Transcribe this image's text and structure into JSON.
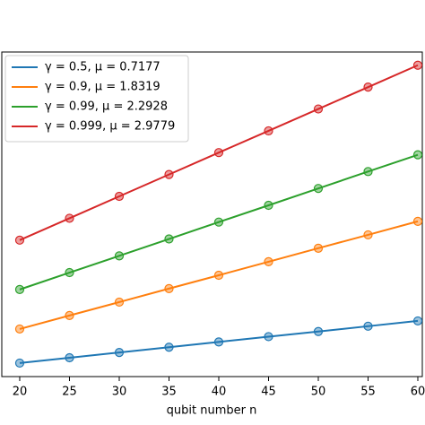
{
  "chart_data": {
    "type": "line",
    "x_label": "qubit number n",
    "x": [
      20,
      25,
      30,
      35,
      40,
      45,
      50,
      55,
      60
    ],
    "xlim": [
      18.2,
      60.45
    ],
    "xticks": [
      20,
      25,
      30,
      35,
      40,
      45,
      50,
      55,
      60
    ],
    "ylim": [
      0,
      221
    ],
    "legend": "upper left",
    "series": [
      {
        "name": "γ = 0.5,  μ = 0.7177",
        "color": "#1f77b4",
        "values": [
          9.2,
          12.8,
          16.4,
          20.0,
          23.6,
          27.2,
          30.7,
          34.3,
          37.9
        ]
      },
      {
        "name": "γ = 0.9,  μ = 1.8319",
        "color": "#ff7f0e",
        "values": [
          32.4,
          41.6,
          50.7,
          59.9,
          69.0,
          78.2,
          87.4,
          96.5,
          105.7
        ]
      },
      {
        "name": "γ = 0.99,  μ = 2.2928",
        "color": "#2ca02c",
        "values": [
          59.3,
          70.8,
          82.2,
          93.7,
          105.2,
          116.6,
          128.1,
          139.6,
          151.0
        ]
      },
      {
        "name": "γ = 0.999,  μ = 2.9779",
        "color": "#d62728",
        "values": [
          92.9,
          107.8,
          122.7,
          137.6,
          152.5,
          167.3,
          182.2,
          197.1,
          212.0
        ]
      }
    ]
  }
}
